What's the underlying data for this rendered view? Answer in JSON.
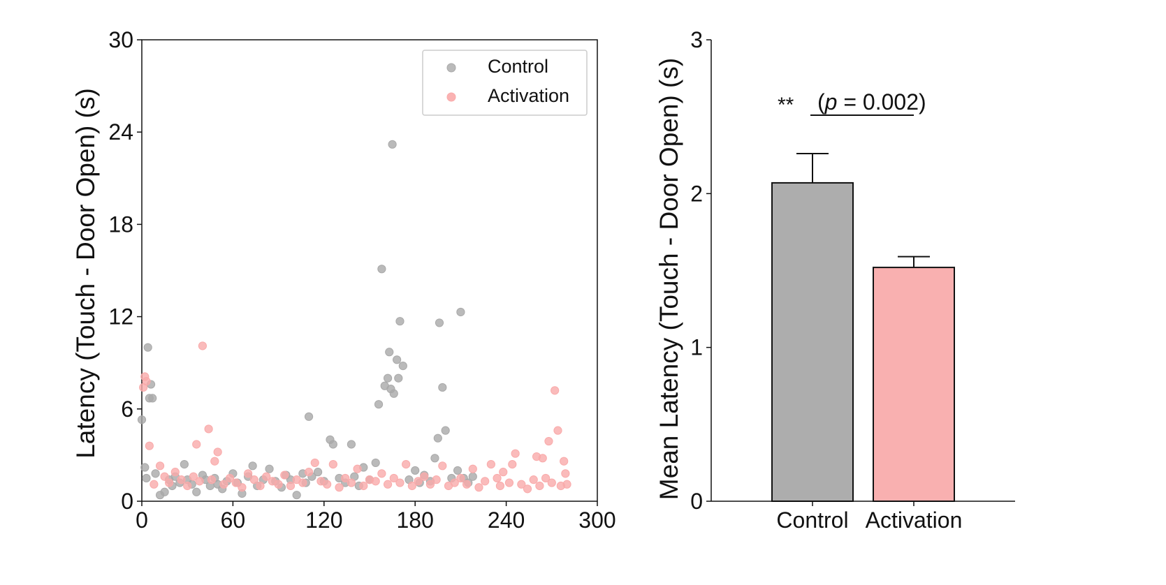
{
  "colors": {
    "control": "#a9a9a9",
    "activation": "#f9aaaa",
    "control_bar": "#adadad",
    "activation_bar": "#f9b0b0",
    "axis": "#111111"
  },
  "chart_data": [
    {
      "type": "scatter",
      "xlabel": "",
      "ylabel": "Latency (Touch - Door Open) (s)",
      "xlim": [
        0,
        300
      ],
      "ylim": [
        0,
        30
      ],
      "xticks": [
        "0",
        "60",
        "120",
        "180",
        "240",
        "300"
      ],
      "yticks": [
        "0",
        "6",
        "12",
        "18",
        "24",
        "30"
      ],
      "grid": false,
      "legend": {
        "position": "top-right",
        "entries": [
          "Control",
          "Activation"
        ]
      },
      "series": [
        {
          "name": "Control",
          "color": "#a9a9a9",
          "x": [
            0,
            2,
            3,
            4,
            5,
            6,
            7,
            9,
            12,
            15,
            18,
            20,
            22,
            25,
            28,
            30,
            33,
            36,
            40,
            42,
            45,
            48,
            50,
            53,
            56,
            60,
            63,
            66,
            70,
            73,
            76,
            80,
            84,
            88,
            92,
            95,
            98,
            102,
            106,
            108,
            110,
            112,
            116,
            120,
            124,
            126,
            130,
            134,
            138,
            140,
            143,
            146,
            150,
            154,
            156,
            158,
            160,
            162,
            163,
            164,
            165,
            166,
            168,
            169,
            170,
            172,
            176,
            180,
            183,
            186,
            190,
            193,
            195,
            196,
            198,
            200,
            204,
            208,
            210,
            212,
            215,
            218
          ],
          "y": [
            5.3,
            2.2,
            1.5,
            10.0,
            6.7,
            7.6,
            6.7,
            1.8,
            0.4,
            0.6,
            1.4,
            1.0,
            1.6,
            1.2,
            2.4,
            1.4,
            1.1,
            0.6,
            1.7,
            1.4,
            1.0,
            1.5,
            1.1,
            0.8,
            1.3,
            1.8,
            1.2,
            0.5,
            1.6,
            2.3,
            1.0,
            1.4,
            2.1,
            1.3,
            0.9,
            1.7,
            1.4,
            0.4,
            1.8,
            1.2,
            5.5,
            1.6,
            1.9,
            1.3,
            4.0,
            3.7,
            1.5,
            1.2,
            3.7,
            1.6,
            1.0,
            2.2,
            1.4,
            2.5,
            6.3,
            15.1,
            7.5,
            8.0,
            9.7,
            7.3,
            23.2,
            7.0,
            9.2,
            8.0,
            11.7,
            8.8,
            1.4,
            2.0,
            1.2,
            1.7,
            1.3,
            2.8,
            4.1,
            11.6,
            7.4,
            4.6,
            1.5,
            2.0,
            12.3,
            1.5,
            1.2,
            1.6
          ]
        },
        {
          "name": "Activation",
          "color": "#f9aaaa",
          "x": [
            1,
            2,
            3,
            5,
            8,
            12,
            15,
            18,
            22,
            26,
            30,
            34,
            36,
            38,
            40,
            44,
            46,
            48,
            50,
            54,
            58,
            62,
            66,
            70,
            74,
            78,
            82,
            86,
            90,
            94,
            98,
            102,
            106,
            110,
            114,
            118,
            122,
            126,
            130,
            134,
            138,
            142,
            146,
            150,
            154,
            158,
            162,
            166,
            170,
            174,
            178,
            182,
            186,
            190,
            194,
            198,
            202,
            206,
            210,
            214,
            218,
            222,
            226,
            230,
            234,
            236,
            238,
            242,
            244,
            246,
            250,
            254,
            258,
            260,
            262,
            264,
            266,
            268,
            270,
            272,
            274,
            276,
            278,
            279,
            280
          ],
          "y": [
            7.4,
            8.1,
            7.8,
            3.6,
            1.1,
            2.3,
            1.6,
            1.2,
            1.9,
            1.4,
            1.0,
            1.6,
            3.7,
            1.3,
            10.1,
            4.7,
            1.4,
            2.6,
            3.2,
            1.1,
            1.5,
            1.2,
            0.9,
            1.8,
            1.4,
            1.0,
            1.6,
            1.3,
            1.1,
            1.7,
            1.0,
            1.4,
            1.2,
            1.9,
            2.5,
            1.3,
            1.1,
            2.4,
            0.9,
            1.5,
            1.2,
            2.1,
            1.0,
            1.4,
            1.3,
            1.8,
            1.1,
            1.5,
            1.2,
            2.4,
            1.0,
            1.3,
            1.6,
            1.1,
            1.4,
            2.3,
            1.0,
            1.2,
            1.5,
            1.1,
            2.1,
            0.9,
            1.3,
            2.4,
            1.5,
            1.0,
            1.9,
            1.2,
            2.4,
            3.1,
            1.1,
            0.8,
            1.4,
            2.9,
            1.0,
            2.8,
            1.5,
            3.9,
            1.2,
            7.2,
            4.6,
            1.0,
            2.6,
            1.8,
            1.1
          ]
        }
      ]
    },
    {
      "type": "bar",
      "xlabel": "",
      "ylabel": "Mean Latency (Touch - Door Open) (s)",
      "categories": [
        "Control",
        "Activation"
      ],
      "values": [
        2.07,
        1.52
      ],
      "errors": [
        0.19,
        0.07
      ],
      "ylim": [
        0,
        3
      ],
      "yticks": [
        "0",
        "1",
        "2",
        "3"
      ],
      "grid": false,
      "annotation": {
        "stars": "**",
        "p_label": "p",
        "p_text": " = 0.002)",
        "open_paren": "("
      }
    }
  ]
}
